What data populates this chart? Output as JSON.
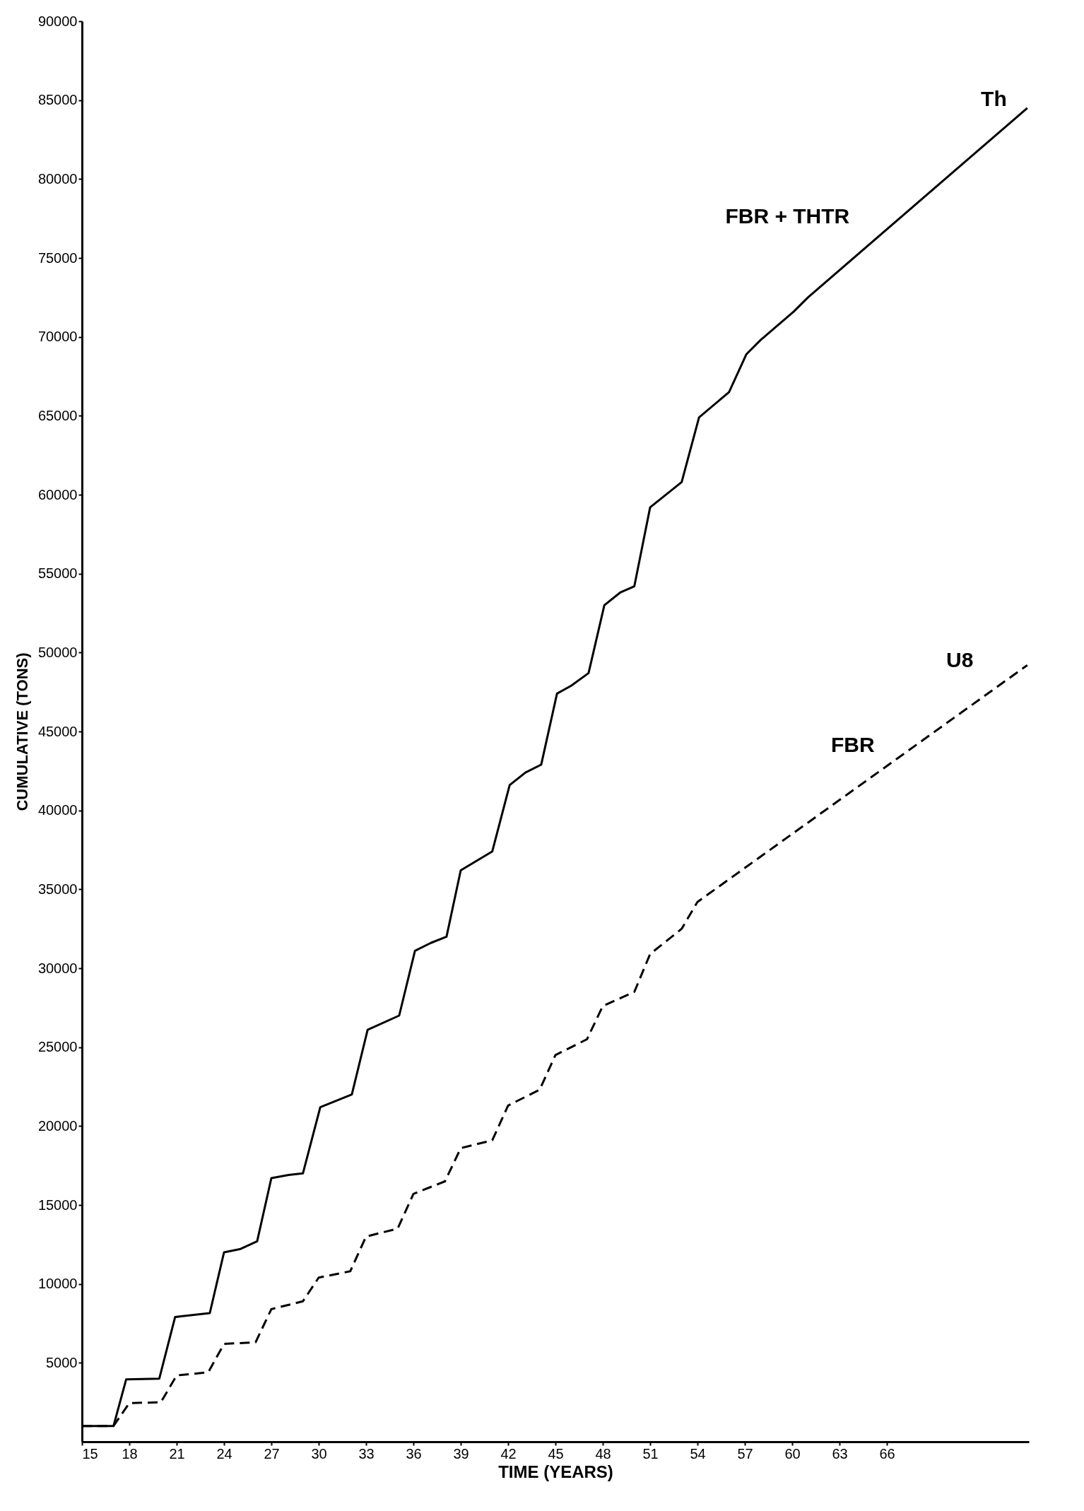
{
  "chart_data": {
    "type": "line",
    "xlabel": "TIME (YEARS)",
    "ylabel": "CUMULATIVE (TONS)",
    "xlim": [
      15,
      75
    ],
    "xticks": [
      15,
      18,
      21,
      24,
      27,
      30,
      33,
      36,
      39,
      42,
      45,
      48,
      51,
      54,
      57,
      60,
      63,
      66
    ],
    "ylim": [
      0,
      90000
    ],
    "yticks": [
      5000,
      10000,
      15000,
      20000,
      25000,
      30000,
      35000,
      40000,
      45000,
      50000,
      55000,
      60000,
      65000,
      70000,
      75000,
      80000,
      85000,
      90000
    ],
    "grid": false,
    "marker": "none",
    "series": [
      {
        "color": "#000000",
        "line_style": "solid",
        "x": [
          15,
          17,
          17.8,
          19.9,
          20.9,
          23.1,
          24,
          25,
          26.1,
          27,
          28.1,
          29,
          30.1,
          32.1,
          33.1,
          35.1,
          36.1,
          37.1,
          38.1,
          39,
          41,
          42.1,
          43.1,
          44.1,
          45.1,
          46,
          47.1,
          48.1,
          49.1,
          50,
          51,
          53,
          54.1,
          56,
          57.1,
          58,
          60.1,
          61,
          74.9
        ],
        "values": [
          1000,
          1000,
          3950,
          4000,
          7900,
          8150,
          12000,
          12200,
          12700,
          16700,
          16900,
          17000,
          21200,
          22000,
          26100,
          27000,
          31100,
          31600,
          32000,
          36200,
          37400,
          41600,
          42400,
          42900,
          47400,
          47900,
          48700,
          53000,
          53800,
          54200,
          59200,
          60800,
          64900,
          66500,
          68900,
          69800,
          71600,
          72500,
          84500
        ]
      },
      {
        "color": "#000000",
        "line_style": "dashed",
        "x": [
          15,
          17,
          18,
          20,
          21,
          23,
          24,
          26,
          27,
          29,
          30,
          32,
          33,
          35,
          36,
          38,
          39,
          41,
          42,
          44,
          45,
          47,
          48,
          50,
          51,
          53,
          54,
          74.9
        ],
        "values": [
          1000,
          1000,
          2450,
          2500,
          4200,
          4400,
          6200,
          6300,
          8400,
          8900,
          10400,
          10800,
          13000,
          13500,
          15700,
          16500,
          18600,
          19100,
          21300,
          22300,
          24500,
          25500,
          27600,
          28500,
          30900,
          32500,
          34200,
          49200
        ]
      }
    ],
    "annotations": [
      "Th",
      "FBR + THTR",
      "U8",
      "FBR"
    ]
  }
}
